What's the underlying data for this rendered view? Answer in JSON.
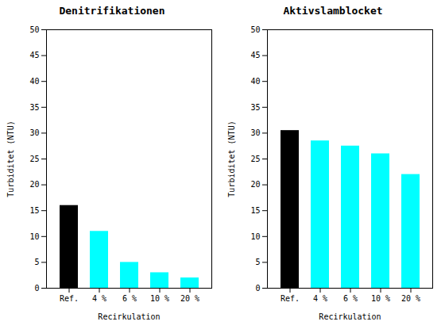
{
  "chart_data": [
    {
      "type": "bar",
      "title": "Denitrifikationen",
      "categories": [
        "Ref.",
        "4 %",
        "6 %",
        "10 %",
        "20 %"
      ],
      "values": [
        16,
        11,
        5,
        3,
        2
      ],
      "colors": [
        "#000000",
        "#00ffff",
        "#00ffff",
        "#00ffff",
        "#00ffff"
      ],
      "xlabel": "Recirkulation",
      "ylabel": "Turbiditet (NTU)",
      "ylim": [
        0,
        50
      ],
      "yticks": [
        0,
        5,
        10,
        15,
        20,
        25,
        30,
        35,
        40,
        45,
        50
      ]
    },
    {
      "type": "bar",
      "title": "Aktivslamblocket",
      "categories": [
        "Ref.",
        "4 %",
        "6 %",
        "10 %",
        "20 %"
      ],
      "values": [
        30.5,
        28.5,
        27.5,
        26,
        22
      ],
      "colors": [
        "#000000",
        "#00ffff",
        "#00ffff",
        "#00ffff",
        "#00ffff"
      ],
      "xlabel": "Recirkulation",
      "ylabel": "Turbiditet (NTU)",
      "ylim": [
        0,
        50
      ],
      "yticks": [
        0,
        5,
        10,
        15,
        20,
        25,
        30,
        35,
        40,
        45,
        50
      ]
    }
  ]
}
